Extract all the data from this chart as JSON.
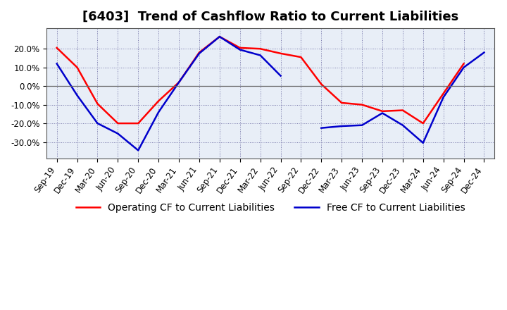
{
  "title": "[6403]  Trend of Cashflow Ratio to Current Liabilities",
  "x_labels": [
    "Sep-19",
    "Dec-19",
    "Mar-20",
    "Jun-20",
    "Sep-20",
    "Dec-20",
    "Mar-21",
    "Jun-21",
    "Sep-21",
    "Dec-21",
    "Mar-22",
    "Jun-22",
    "Sep-22",
    "Dec-22",
    "Mar-23",
    "Jun-23",
    "Sep-23",
    "Dec-23",
    "Mar-24",
    "Jun-24",
    "Sep-24",
    "Dec-24"
  ],
  "operating_cf": [
    0.205,
    0.1,
    -0.095,
    -0.2,
    -0.2,
    -0.08,
    0.02,
    0.18,
    0.265,
    0.205,
    0.2,
    0.175,
    0.155,
    0.01,
    -0.09,
    -0.1,
    -0.135,
    -0.13,
    -0.2,
    -0.04,
    0.12,
    null
  ],
  "free_cf": [
    0.12,
    -0.05,
    -0.2,
    -0.255,
    -0.345,
    -0.14,
    0.02,
    0.175,
    0.265,
    0.195,
    0.165,
    0.055,
    null,
    -0.225,
    -0.215,
    -0.21,
    -0.145,
    -0.21,
    -0.305,
    -0.06,
    0.1,
    0.18
  ],
  "operating_color": "#ff0000",
  "free_color": "#0000cc",
  "ylim": [
    -0.39,
    0.31
  ],
  "yticks": [
    -0.3,
    -0.2,
    -0.1,
    0.0,
    0.1,
    0.2
  ],
  "background_color": "#ffffff",
  "plot_bg_color": "#e8eef7",
  "grid_color": "#7777aa",
  "zero_line_color": "#666666",
  "title_fontsize": 13,
  "legend_fontsize": 10,
  "tick_fontsize": 8.5
}
